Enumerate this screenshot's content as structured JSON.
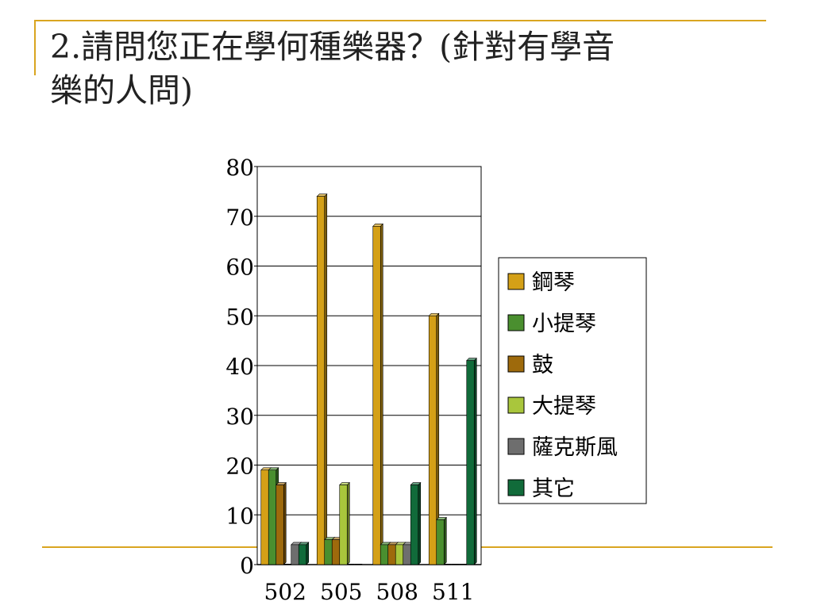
{
  "slide": {
    "title_line1": "2.請問您正在學何種樂器？(針對有學音",
    "title_line2": "樂的人問)"
  },
  "colors": {
    "frame_accent": "#d9a520"
  },
  "chart_data": {
    "type": "bar",
    "title": "2.請問您正在學何種樂器？(針對有學音樂的人問)",
    "xlabel": "",
    "ylabel": "",
    "categories": [
      "502",
      "505",
      "508",
      "511"
    ],
    "ylim": [
      0,
      80
    ],
    "yticks": [
      0,
      10,
      20,
      30,
      40,
      50,
      60,
      70,
      80
    ],
    "grid": true,
    "legend": "right",
    "series": [
      {
        "name": "鋼琴",
        "color": "#d4a017",
        "values": [
          19,
          74,
          68,
          50
        ]
      },
      {
        "name": "小提琴",
        "color": "#4a8f2f",
        "values": [
          19,
          5,
          4,
          9
        ]
      },
      {
        "name": "鼓",
        "color": "#9e6a0c",
        "values": [
          16,
          5,
          4,
          0
        ]
      },
      {
        "name": "大提琴",
        "color": "#a9c63c",
        "values": [
          0,
          16,
          4,
          0
        ]
      },
      {
        "name": "薩克斯風",
        "color": "#6e6e6e",
        "values": [
          4,
          0,
          4,
          0
        ]
      },
      {
        "name": "其它",
        "color": "#116b3a",
        "values": [
          4,
          0,
          16,
          41
        ]
      }
    ]
  }
}
